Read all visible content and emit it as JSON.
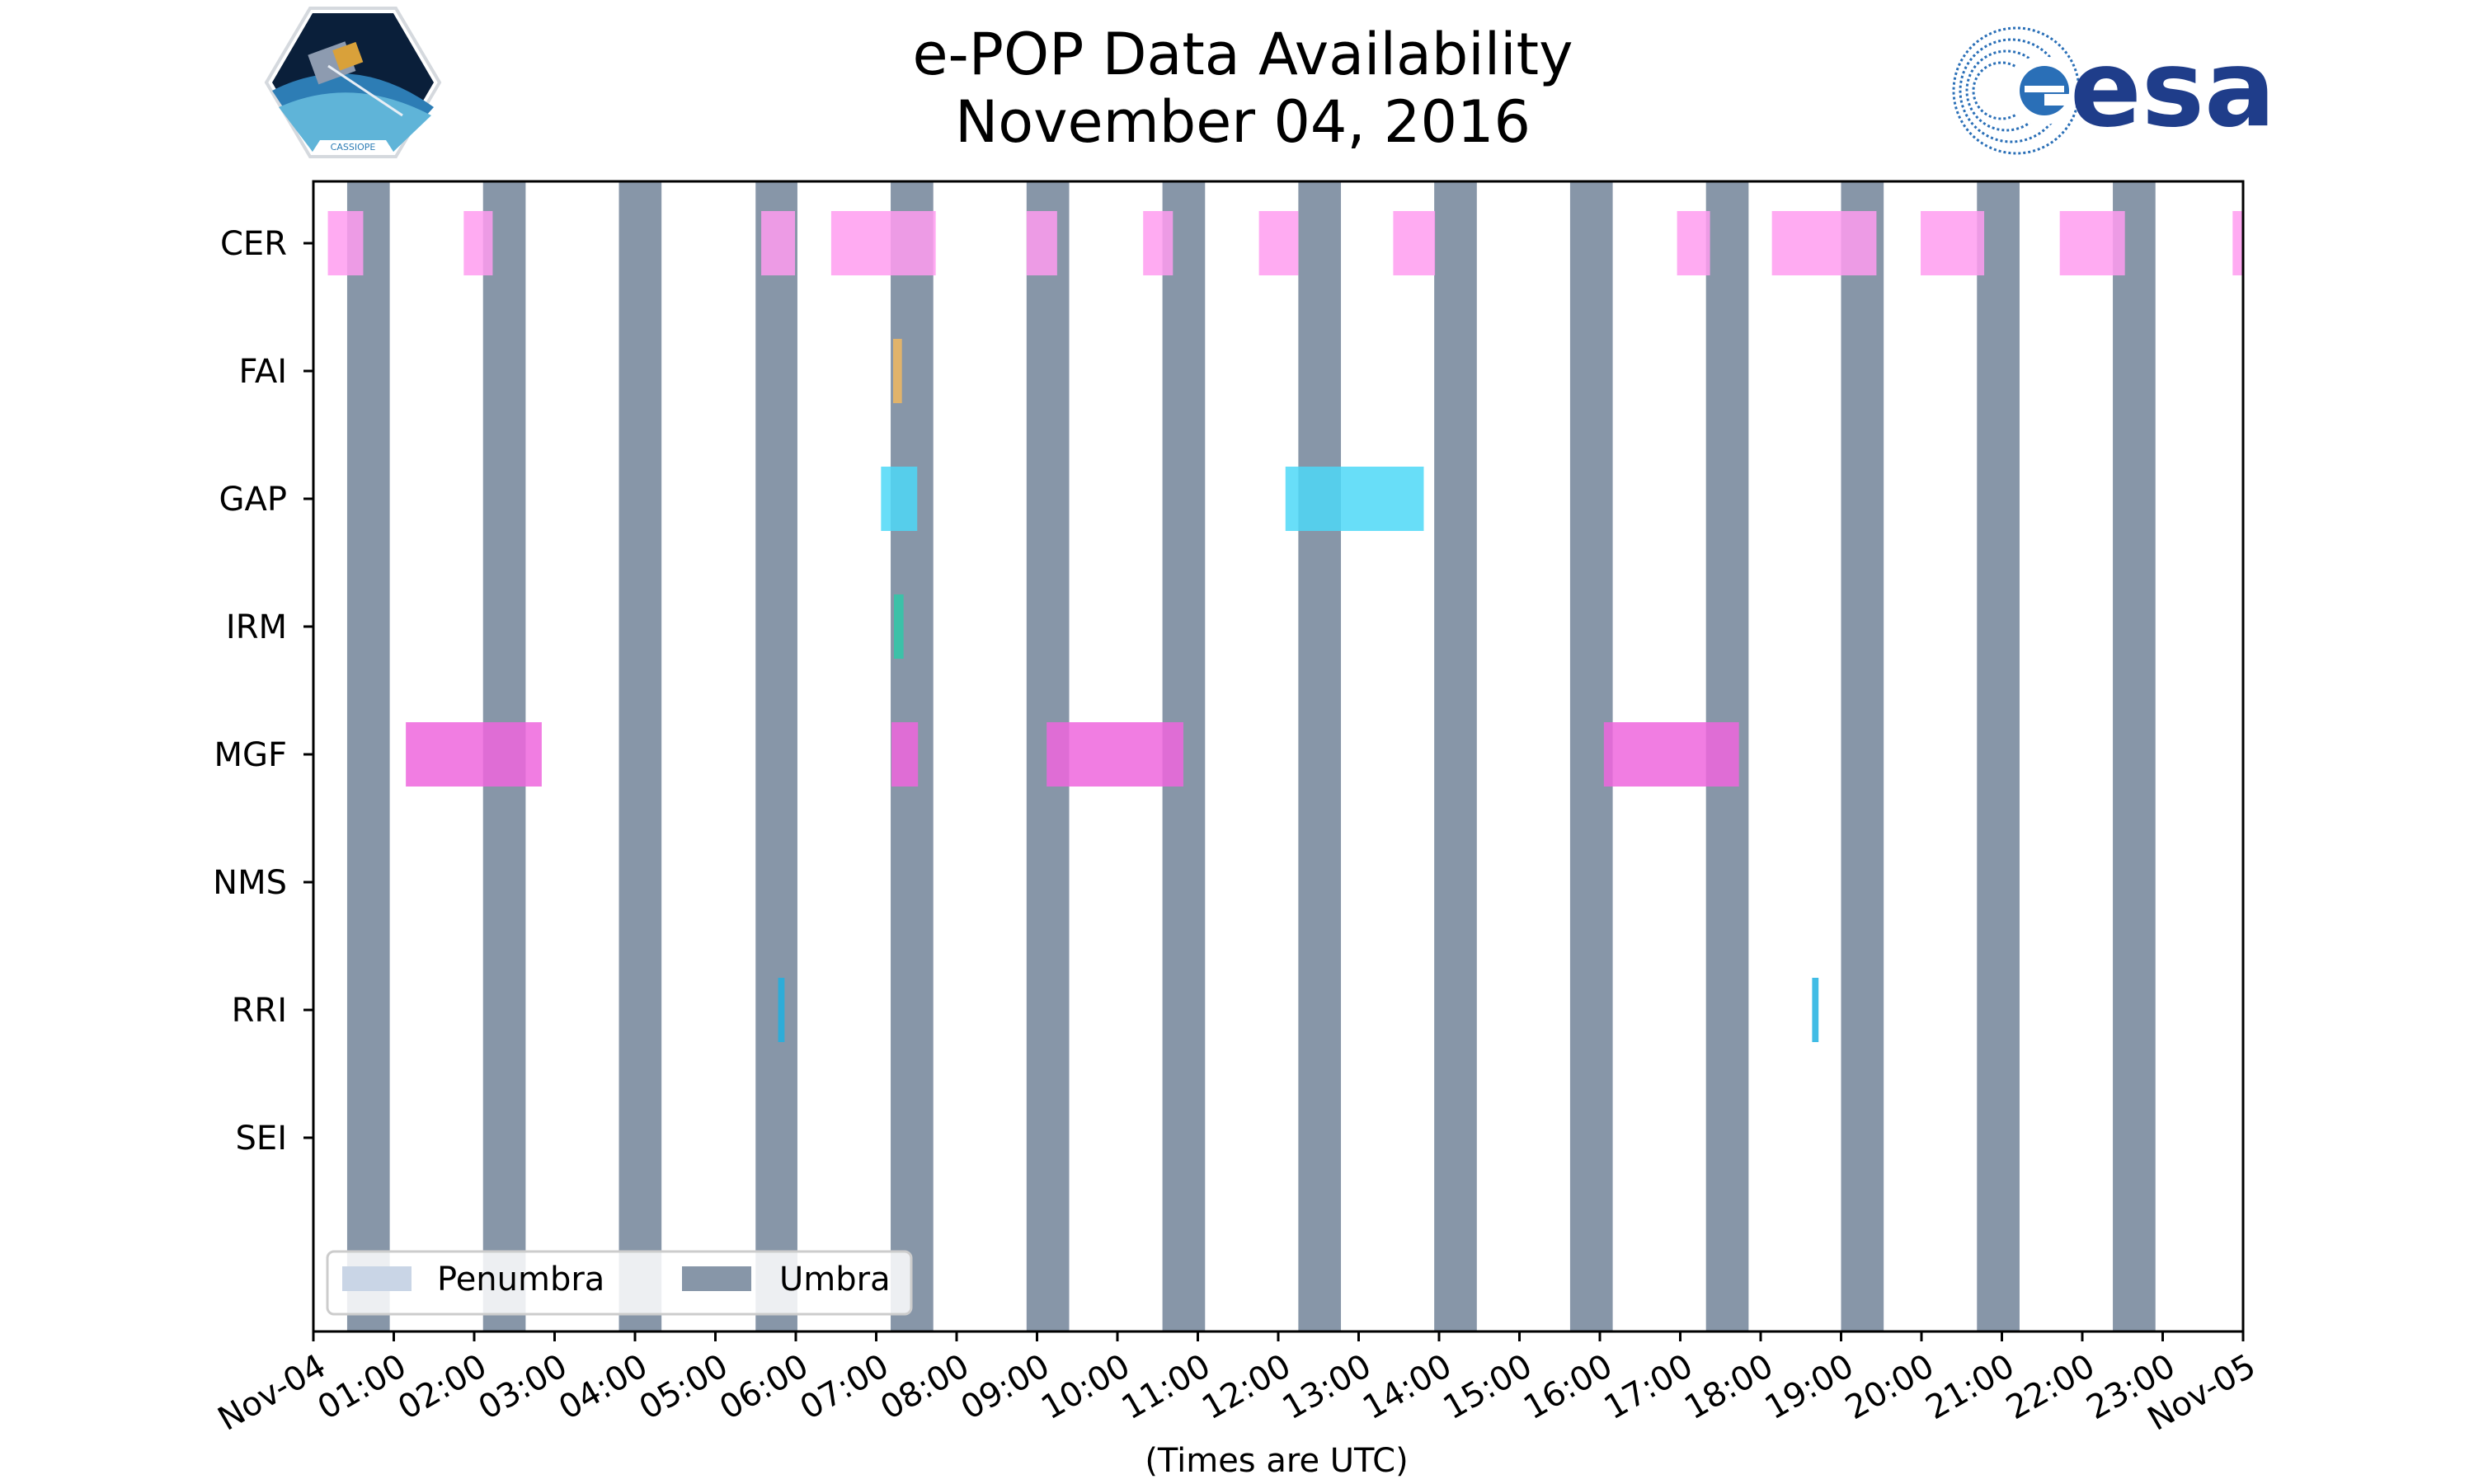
{
  "chart_data": {
    "type": "timeline",
    "title": [
      "e-POP Data Availability",
      "November 04, 2016"
    ],
    "xlabel": "(Times are UTC)",
    "x_range_hours": [
      0,
      24
    ],
    "x_tick_labels": [
      "Nov-04",
      "01:00",
      "02:00",
      "03:00",
      "04:00",
      "05:00",
      "06:00",
      "07:00",
      "08:00",
      "09:00",
      "10:00",
      "11:00",
      "12:00",
      "13:00",
      "14:00",
      "15:00",
      "16:00",
      "17:00",
      "18:00",
      "19:00",
      "20:00",
      "21:00",
      "22:00",
      "23:00",
      "Nov-05"
    ],
    "instruments": [
      "CER",
      "FAI",
      "GAP",
      "IRM",
      "MGF",
      "NMS",
      "RRI",
      "SEI"
    ],
    "umbra_intervals": [
      [
        0.42,
        0.95
      ],
      [
        2.11,
        2.64
      ],
      [
        3.8,
        4.33
      ],
      [
        5.5,
        6.02
      ],
      [
        7.18,
        7.71
      ],
      [
        8.87,
        9.4
      ],
      [
        10.56,
        11.09
      ],
      [
        12.25,
        12.78
      ],
      [
        13.94,
        14.47
      ],
      [
        15.63,
        16.16
      ],
      [
        17.32,
        17.85
      ],
      [
        19.0,
        19.53
      ],
      [
        20.69,
        21.22
      ],
      [
        22.38,
        22.91
      ]
    ],
    "availability": {
      "CER": [
        [
          0.18,
          0.62
        ],
        [
          1.87,
          2.23
        ],
        [
          5.57,
          5.99
        ],
        [
          6.44,
          7.74
        ],
        [
          8.87,
          9.25
        ],
        [
          10.32,
          10.69
        ],
        [
          11.76,
          12.25
        ],
        [
          13.43,
          13.95
        ],
        [
          16.96,
          17.37
        ],
        [
          18.14,
          19.44
        ],
        [
          19.99,
          20.78
        ],
        [
          21.72,
          22.53
        ],
        [
          23.87,
          24.0
        ]
      ],
      "FAI": [
        [
          7.21,
          7.32
        ]
      ],
      "GAP": [
        [
          7.06,
          7.51
        ],
        [
          12.09,
          13.81
        ]
      ],
      "IRM": [
        [
          7.22,
          7.34
        ]
      ],
      "MGF": [
        [
          1.15,
          2.84
        ],
        [
          7.19,
          7.52
        ],
        [
          9.12,
          10.82
        ],
        [
          16.05,
          17.73
        ]
      ],
      "NMS": [],
      "RRI": [
        [
          5.78,
          5.86
        ],
        [
          18.64,
          18.72
        ]
      ],
      "SEI": []
    },
    "instrument_colors": {
      "CER": "#ff9cf0",
      "FAI": "#f0b860",
      "GAP": "#4ed8f7",
      "IRM": "#2fc9a8",
      "MGF": "#ee66dd",
      "NMS": "#888888",
      "RRI": "#1eb0e0",
      "SEI": "#888888"
    },
    "legend": [
      {
        "label": "Penumbra",
        "color": "#c9d5e6"
      },
      {
        "label": "Umbra",
        "color": "#8796a8"
      }
    ],
    "legend_position": "lower-left",
    "umbra_color": "#8796a8"
  },
  "logos": {
    "left": "CASSIOPE",
    "right": "esa"
  }
}
